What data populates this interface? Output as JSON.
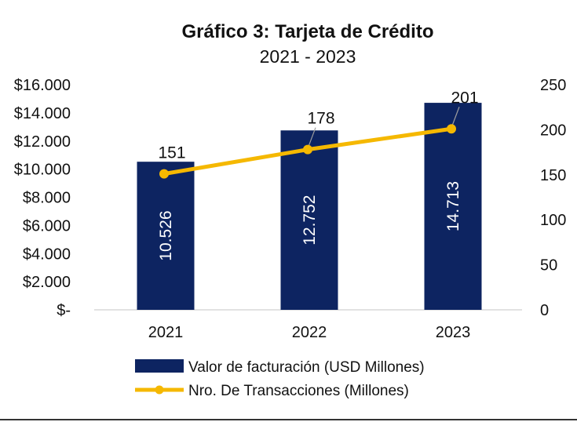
{
  "chart_data": {
    "type": "bar",
    "title": "Gráfico 3: Tarjeta de Crédito",
    "subtitle": "2021 - 2023",
    "categories": [
      "2021",
      "2022",
      "2023"
    ],
    "series": [
      {
        "name": "Valor de facturación (USD Millones)",
        "type": "bar",
        "axis": "left",
        "values": [
          10526,
          12752,
          14713
        ],
        "labels": [
          "10.526",
          "12.752",
          "14.713"
        ],
        "color": "#0d2461"
      },
      {
        "name": "Nro. De Transacciones (Millones)",
        "type": "line",
        "axis": "right",
        "values": [
          151,
          178,
          201
        ],
        "labels": [
          "151",
          "178",
          "201"
        ],
        "color": "#f5b800"
      }
    ],
    "y_left": {
      "ylim": [
        0,
        16000
      ],
      "ticks": [
        0,
        2000,
        4000,
        6000,
        8000,
        10000,
        12000,
        14000,
        16000
      ],
      "tick_labels": [
        "$-",
        "$2.000",
        "$4.000",
        "$6.000",
        "$8.000",
        "$10.000",
        "$12.000",
        "$14.000",
        "$16.000"
      ]
    },
    "y_right": {
      "ylim": [
        0,
        250
      ],
      "ticks": [
        0,
        50,
        100,
        150,
        200,
        250
      ],
      "tick_labels": [
        "0",
        "50",
        "100",
        "150",
        "200",
        "250"
      ]
    },
    "grid": false,
    "legend_position": "bottom"
  }
}
